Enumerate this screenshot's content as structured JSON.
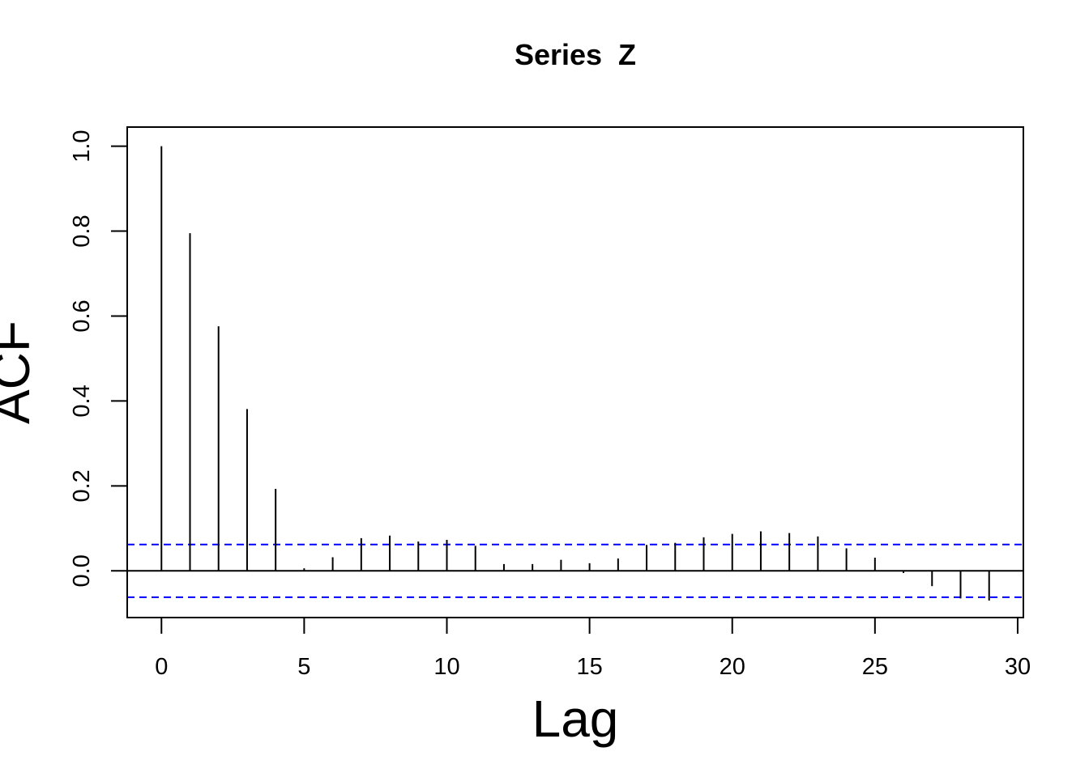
{
  "chart_data": {
    "type": "bar",
    "title": "Series  Z",
    "xlabel": "Lag",
    "ylabel": "ACF",
    "xlim": [
      -1.2,
      30.2
    ],
    "ylim": [
      -0.11,
      1.045
    ],
    "x_ticks": [
      "0",
      "5",
      "10",
      "15",
      "20",
      "25",
      "30"
    ],
    "y_ticks": [
      "0.0",
      "0.2",
      "0.4",
      "0.6",
      "0.8",
      "1.0"
    ],
    "lags": [
      0,
      1,
      2,
      3,
      4,
      5,
      6,
      7,
      8,
      9,
      10,
      11,
      12,
      13,
      14,
      15,
      16,
      17,
      18,
      19,
      20,
      21,
      22,
      23,
      24,
      25,
      26,
      27,
      28,
      29
    ],
    "values": [
      1.0,
      0.795,
      0.576,
      0.381,
      0.193,
      0.006,
      0.032,
      0.077,
      0.083,
      0.069,
      0.073,
      0.059,
      0.016,
      0.016,
      0.026,
      0.018,
      0.029,
      0.061,
      0.066,
      0.079,
      0.087,
      0.093,
      0.089,
      0.081,
      0.053,
      0.031,
      -0.005,
      -0.036,
      -0.065,
      -0.07
    ],
    "confidence_bound": 0.062,
    "grid": false,
    "colors": {
      "bars": "#000000",
      "confidence": "#0000ff",
      "zero_line": "#000000"
    }
  }
}
